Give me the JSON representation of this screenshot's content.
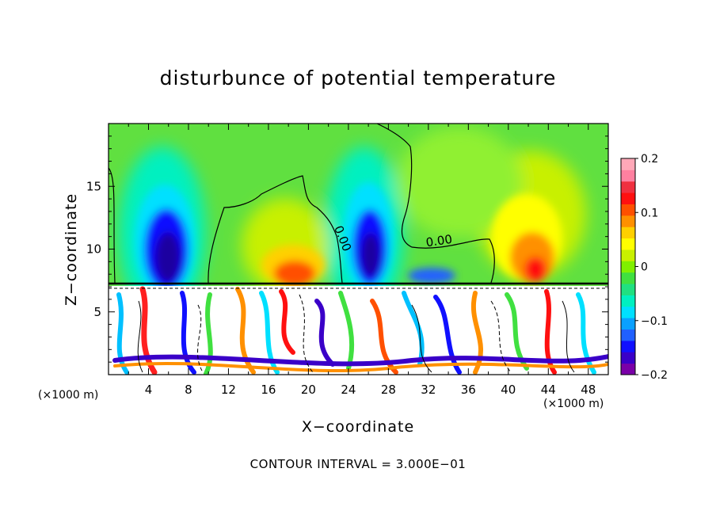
{
  "chart_data": {
    "type": "heatmap",
    "title": "disturbunce of potential temperature",
    "xlabel": "X−coordinate",
    "ylabel": "Z−coordinate",
    "x_unit_label": "(×1000 m)",
    "xlim": [
      0,
      50
    ],
    "ylim": [
      0,
      20
    ],
    "x_ticks": [
      "4",
      "8",
      "12",
      "16",
      "20",
      "24",
      "28",
      "32",
      "36",
      "40",
      "44",
      "48"
    ],
    "x_tick_values": [
      4,
      8,
      12,
      16,
      20,
      24,
      28,
      32,
      36,
      40,
      44,
      48
    ],
    "y_ticks": [
      "5",
      "10",
      "15"
    ],
    "y_tick_values": [
      5,
      10,
      15
    ],
    "colorbar": {
      "range": [
        -0.2,
        0.2
      ],
      "labels": [
        "0.2",
        "0.1",
        "0",
        "−0.1",
        "−0.2"
      ],
      "label_values": [
        0.2,
        0.1,
        0,
        -0.1,
        -0.2
      ],
      "colors": [
        "#7a00a8",
        "#3a00c8",
        "#1010ff",
        "#2060ff",
        "#0aa0ff",
        "#00e0ff",
        "#00f0c0",
        "#20e080",
        "#40e040",
        "#80f000",
        "#c8f000",
        "#ffff00",
        "#ffd000",
        "#ff9000",
        "#ff5000",
        "#ff1010",
        "#f03040",
        "#ff80a0",
        "#ffa8b8"
      ]
    },
    "contour_labels": [
      "0.00",
      "0.00"
    ],
    "contour_interval": "CONTOUR INTERVAL = 3.000E−01"
  }
}
